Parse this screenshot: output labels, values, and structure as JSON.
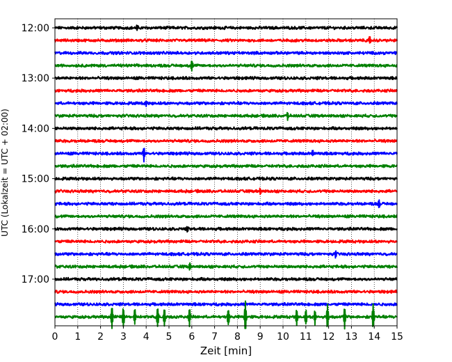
{
  "chart_data": {
    "type": "line",
    "title": "",
    "xlabel": "Zeit  [min]",
    "ylabel": "UTC (Lokalzeit = UTC + 02:00)",
    "xlim": [
      0,
      15
    ],
    "x_ticks": [
      0,
      1,
      2,
      3,
      4,
      5,
      6,
      7,
      8,
      9,
      10,
      11,
      12,
      13,
      14,
      15
    ],
    "y_tick_labels": [
      "12:00",
      "13:00",
      "14:00",
      "15:00",
      "16:00",
      "17:00"
    ],
    "y_tick_rows": [
      0,
      4,
      8,
      12,
      16,
      20
    ],
    "row_minutes": 15,
    "row_count": 24,
    "grid": "vertical-dotted",
    "color_cycle": [
      "#000000",
      "#ff0000",
      "#0000ff",
      "#008000"
    ],
    "events": [
      {
        "row": 0,
        "minute": 3.6,
        "amplitude": 0.5
      },
      {
        "row": 1,
        "minute": 13.8,
        "amplitude": 0.5
      },
      {
        "row": 3,
        "minute": 6.0,
        "amplitude": 0.8
      },
      {
        "row": 6,
        "minute": 4.0,
        "amplitude": 0.4
      },
      {
        "row": 7,
        "minute": 10.2,
        "amplitude": 0.5
      },
      {
        "row": 10,
        "minute": 3.9,
        "amplitude": 1.1
      },
      {
        "row": 10,
        "minute": 11.3,
        "amplitude": 0.4
      },
      {
        "row": 13,
        "minute": 9.0,
        "amplitude": 0.5
      },
      {
        "row": 14,
        "minute": 14.2,
        "amplitude": 0.6
      },
      {
        "row": 16,
        "minute": 5.8,
        "amplitude": 0.5
      },
      {
        "row": 18,
        "minute": 12.3,
        "amplitude": 0.5
      },
      {
        "row": 19,
        "minute": 5.9,
        "amplitude": 0.5
      },
      {
        "row": 23,
        "minute": 2.5,
        "amplitude": 1.7
      },
      {
        "row": 23,
        "minute": 3.0,
        "amplitude": 1.5
      },
      {
        "row": 23,
        "minute": 3.5,
        "amplitude": 1.2
      },
      {
        "row": 23,
        "minute": 4.5,
        "amplitude": 1.4
      },
      {
        "row": 23,
        "minute": 4.8,
        "amplitude": 1.3
      },
      {
        "row": 23,
        "minute": 5.9,
        "amplitude": 1.2
      },
      {
        "row": 23,
        "minute": 7.6,
        "amplitude": 1.2
      },
      {
        "row": 23,
        "minute": 8.35,
        "amplitude": 2.2
      },
      {
        "row": 23,
        "minute": 10.6,
        "amplitude": 1.3
      },
      {
        "row": 23,
        "minute": 11.0,
        "amplitude": 1.2
      },
      {
        "row": 23,
        "minute": 11.4,
        "amplitude": 1.1
      },
      {
        "row": 23,
        "minute": 11.95,
        "amplitude": 1.8
      },
      {
        "row": 23,
        "minute": 12.7,
        "amplitude": 1.7
      },
      {
        "row": 23,
        "minute": 13.95,
        "amplitude": 1.8
      }
    ]
  }
}
